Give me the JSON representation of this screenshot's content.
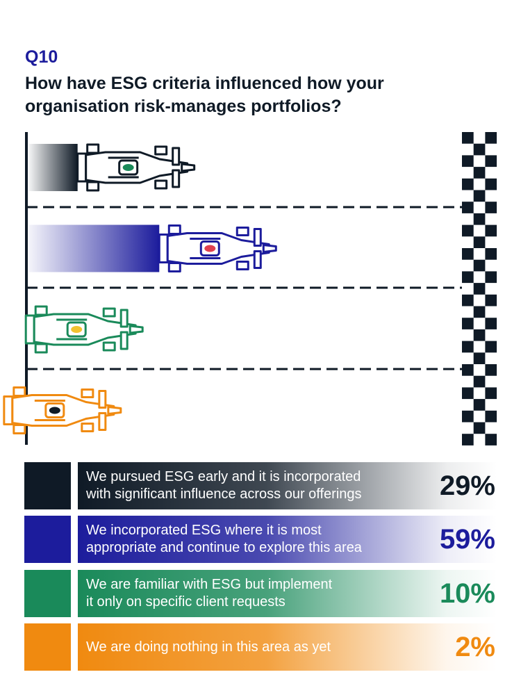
{
  "header": {
    "question_number": "Q10",
    "question_text": "How have ESG criteria influenced how your organisation risk-manages portfolios?"
  },
  "chart_data": {
    "type": "bar",
    "orientation": "horizontal",
    "title": "How have ESG criteria influenced how your organisation risk-manages portfolios?",
    "categories": [
      "We pursued ESG early and it is incorporated with significant influence across our offerings",
      "We incorporated ESG where it is most appropriate and continue to explore this area",
      "We are familiar with ESG but implement it only on specific client requests",
      "We are doing nothing in this area as yet"
    ],
    "values": [
      29,
      59,
      10,
      2
    ],
    "value_labels": [
      "29%",
      "59%",
      "10%",
      "2%"
    ],
    "unit": "%",
    "colors": [
      "#0f1a26",
      "#1c1c9c",
      "#1a8a5a",
      "#f08a10"
    ],
    "car_accent_colors": [
      "#1a8a5a",
      "#e0404e",
      "#f2c230",
      "#0f1a26"
    ],
    "decoration": "race-cars with checkered finish line",
    "legend": [
      {
        "label_line1": "We pursued ESG early and it is incorporated",
        "label_line2": "with significant influence across our offerings",
        "pct": "29%"
      },
      {
        "label_line1": "We incorporated ESG where it is most",
        "label_line2": "appropriate and continue to explore this area",
        "pct": "59%"
      },
      {
        "label_line1": "We are familiar with ESG but implement",
        "label_line2": "it only on specific client requests",
        "pct": "10%"
      },
      {
        "label_line1": "We are doing nothing in this area as yet",
        "label_line2": "",
        "pct": "2%"
      }
    ]
  }
}
